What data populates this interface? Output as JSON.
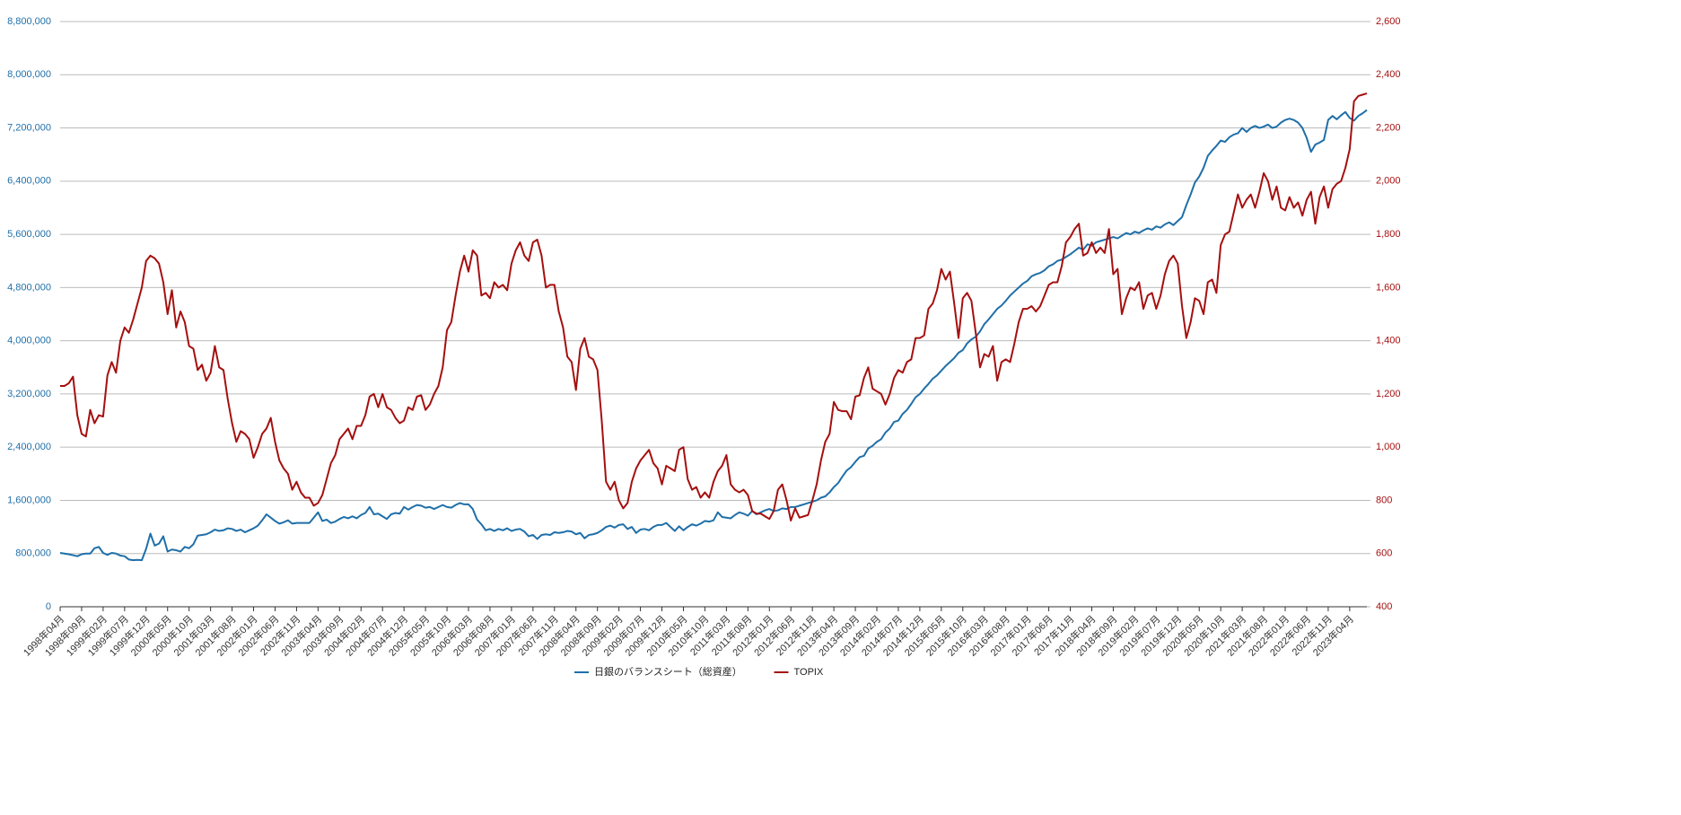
{
  "chart_data": {
    "type": "line",
    "categories": [
      "1998年04月",
      null,
      null,
      null,
      null,
      "1998年09月",
      null,
      null,
      null,
      null,
      "1999年02月",
      null,
      null,
      null,
      null,
      "1999年07月",
      null,
      null,
      null,
      null,
      "1999年12月",
      null,
      null,
      null,
      null,
      "2000年05月",
      null,
      null,
      null,
      null,
      "2000年10月",
      null,
      null,
      null,
      null,
      "2001年03月",
      null,
      null,
      null,
      null,
      "2001年08月",
      null,
      null,
      null,
      null,
      "2002年01月",
      null,
      null,
      null,
      null,
      "2002年06月",
      null,
      null,
      null,
      null,
      "2002年11月",
      null,
      null,
      null,
      null,
      "2003年04月",
      null,
      null,
      null,
      null,
      "2003年09月",
      null,
      null,
      null,
      null,
      "2004年02月",
      null,
      null,
      null,
      null,
      "2004年07月",
      null,
      null,
      null,
      null,
      "2004年12月",
      null,
      null,
      null,
      null,
      "2005年05月",
      null,
      null,
      null,
      null,
      "2005年10月",
      null,
      null,
      null,
      null,
      "2006年03月",
      null,
      null,
      null,
      null,
      "2006年08月",
      null,
      null,
      null,
      null,
      "2007年01月",
      null,
      null,
      null,
      null,
      "2007年06月",
      null,
      null,
      null,
      null,
      "2007年11月",
      null,
      null,
      null,
      null,
      "2008年04月",
      null,
      null,
      null,
      null,
      "2008年09月",
      null,
      null,
      null,
      null,
      "2009年02月",
      null,
      null,
      null,
      null,
      "2009年07月",
      null,
      null,
      null,
      null,
      "2009年12月",
      null,
      null,
      null,
      null,
      "2010年05月",
      null,
      null,
      null,
      null,
      "2010年10月",
      null,
      null,
      null,
      null,
      "2011年03月",
      null,
      null,
      null,
      null,
      "2011年08月",
      null,
      null,
      null,
      null,
      "2012年01月",
      null,
      null,
      null,
      null,
      "2012年06月",
      null,
      null,
      null,
      null,
      "2012年11月",
      null,
      null,
      null,
      null,
      "2013年04月",
      null,
      null,
      null,
      null,
      "2013年09月",
      null,
      null,
      null,
      null,
      "2014年02月",
      null,
      null,
      null,
      null,
      "2014年07月",
      null,
      null,
      null,
      null,
      "2014年12月",
      null,
      null,
      null,
      null,
      "2015年05月",
      null,
      null,
      null,
      null,
      "2015年10月",
      null,
      null,
      null,
      null,
      "2016年03月",
      null,
      null,
      null,
      null,
      "2016年08月",
      null,
      null,
      null,
      null,
      "2017年01月",
      null,
      null,
      null,
      null,
      "2017年06月",
      null,
      null,
      null,
      null,
      "2017年11月",
      null,
      null,
      null,
      null,
      "2018年04月",
      null,
      null,
      null,
      null,
      "2018年09月",
      null,
      null,
      null,
      null,
      "2019年02月",
      null,
      null,
      null,
      null,
      "2019年07月",
      null,
      null,
      null,
      null,
      "2019年12月",
      null,
      null,
      null,
      null,
      "2020年05月",
      null,
      null,
      null,
      null,
      "2020年10月",
      null,
      null,
      null,
      null,
      "2021年03月",
      null,
      null,
      null,
      null,
      "2021年08月",
      null,
      null,
      null,
      null,
      "2022年01月",
      null,
      null,
      null,
      null,
      "2022年06月",
      null,
      null,
      null,
      null,
      "2022年11月",
      null,
      null,
      null,
      null,
      "2023年04月",
      null,
      null,
      null,
      null
    ],
    "series": [
      {
        "name": "日銀のバランスシート（総資産）",
        "color": "#1f6fa8",
        "axis": "y",
        "values": [
          810000,
          800000,
          790000,
          775000,
          760000,
          790000,
          800000,
          800000,
          880000,
          900000,
          810000,
          780000,
          810000,
          800000,
          770000,
          760000,
          710000,
          700000,
          705000,
          700000,
          870000,
          1100000,
          920000,
          950000,
          1060000,
          830000,
          860000,
          850000,
          830000,
          900000,
          880000,
          940000,
          1070000,
          1080000,
          1090000,
          1120000,
          1160000,
          1140000,
          1150000,
          1180000,
          1170000,
          1140000,
          1160000,
          1120000,
          1150000,
          1180000,
          1220000,
          1300000,
          1390000,
          1340000,
          1290000,
          1250000,
          1270000,
          1300000,
          1250000,
          1260000,
          1260000,
          1260000,
          1260000,
          1340000,
          1420000,
          1290000,
          1310000,
          1260000,
          1280000,
          1320000,
          1350000,
          1330000,
          1360000,
          1330000,
          1380000,
          1410000,
          1500000,
          1390000,
          1400000,
          1360000,
          1320000,
          1390000,
          1410000,
          1400000,
          1500000,
          1460000,
          1500000,
          1530000,
          1520000,
          1490000,
          1500000,
          1470000,
          1500000,
          1530000,
          1500000,
          1490000,
          1530000,
          1560000,
          1540000,
          1540000,
          1470000,
          1310000,
          1240000,
          1150000,
          1170000,
          1140000,
          1170000,
          1150000,
          1180000,
          1140000,
          1160000,
          1170000,
          1130000,
          1060000,
          1080000,
          1020000,
          1080000,
          1090000,
          1080000,
          1120000,
          1110000,
          1120000,
          1140000,
          1130000,
          1090000,
          1110000,
          1030000,
          1080000,
          1090000,
          1110000,
          1150000,
          1200000,
          1220000,
          1190000,
          1230000,
          1240000,
          1170000,
          1200000,
          1110000,
          1160000,
          1170000,
          1150000,
          1200000,
          1230000,
          1230000,
          1260000,
          1200000,
          1140000,
          1210000,
          1150000,
          1200000,
          1240000,
          1220000,
          1250000,
          1290000,
          1280000,
          1300000,
          1420000,
          1350000,
          1340000,
          1330000,
          1380000,
          1420000,
          1400000,
          1370000,
          1440000,
          1390000,
          1420000,
          1450000,
          1470000,
          1440000,
          1450000,
          1480000,
          1470000,
          1500000,
          1500000,
          1520000,
          1540000,
          1560000,
          1580000,
          1600000,
          1640000,
          1660000,
          1720000,
          1800000,
          1860000,
          1960000,
          2050000,
          2100000,
          2180000,
          2250000,
          2270000,
          2380000,
          2420000,
          2480000,
          2520000,
          2620000,
          2680000,
          2780000,
          2800000,
          2900000,
          2960000,
          3050000,
          3150000,
          3200000,
          3280000,
          3350000,
          3430000,
          3480000,
          3550000,
          3620000,
          3680000,
          3740000,
          3820000,
          3860000,
          3960000,
          4020000,
          4060000,
          4140000,
          4250000,
          4320000,
          4400000,
          4480000,
          4530000,
          4600000,
          4680000,
          4740000,
          4800000,
          4860000,
          4900000,
          4970000,
          5000000,
          5020000,
          5060000,
          5120000,
          5150000,
          5200000,
          5220000,
          5260000,
          5300000,
          5350000,
          5400000,
          5370000,
          5450000,
          5430000,
          5480000,
          5500000,
          5520000,
          5540000,
          5560000,
          5540000,
          5580000,
          5620000,
          5600000,
          5640000,
          5620000,
          5660000,
          5690000,
          5670000,
          5720000,
          5700000,
          5750000,
          5780000,
          5740000,
          5800000,
          5860000,
          6040000,
          6200000,
          6380000,
          6470000,
          6600000,
          6780000,
          6860000,
          6930000,
          7010000,
          6990000,
          7060000,
          7100000,
          7120000,
          7200000,
          7140000,
          7200000,
          7230000,
          7200000,
          7220000,
          7250000,
          7200000,
          7220000,
          7280000,
          7320000,
          7340000,
          7320000,
          7280000,
          7200000,
          7050000,
          6840000,
          6950000,
          6980000,
          7020000,
          7320000,
          7380000,
          7330000,
          7390000,
          7440000,
          7350000,
          7310000,
          7380000,
          7420000,
          7470000
        ]
      },
      {
        "name": "TOPIX",
        "color": "#a50f0f",
        "axis": "y2",
        "values": [
          1230,
          1230,
          1240,
          1265,
          1120,
          1050,
          1040,
          1140,
          1090,
          1120,
          1115,
          1270,
          1320,
          1280,
          1400,
          1450,
          1430,
          1480,
          1540,
          1600,
          1700,
          1720,
          1710,
          1690,
          1620,
          1500,
          1590,
          1450,
          1510,
          1470,
          1380,
          1370,
          1290,
          1310,
          1250,
          1280,
          1380,
          1300,
          1290,
          1180,
          1090,
          1020,
          1060,
          1050,
          1030,
          960,
          1000,
          1050,
          1070,
          1110,
          1020,
          950,
          920,
          900,
          840,
          870,
          830,
          810,
          810,
          780,
          790,
          820,
          880,
          940,
          970,
          1030,
          1050,
          1070,
          1030,
          1080,
          1080,
          1120,
          1190,
          1200,
          1150,
          1200,
          1150,
          1140,
          1110,
          1090,
          1100,
          1150,
          1140,
          1190,
          1195,
          1140,
          1160,
          1200,
          1230,
          1300,
          1440,
          1470,
          1570,
          1660,
          1720,
          1660,
          1740,
          1720,
          1570,
          1580,
          1560,
          1620,
          1600,
          1610,
          1590,
          1690,
          1740,
          1770,
          1720,
          1700,
          1770,
          1780,
          1720,
          1600,
          1610,
          1610,
          1510,
          1450,
          1340,
          1320,
          1215,
          1370,
          1410,
          1340,
          1330,
          1290,
          1100,
          870,
          840,
          870,
          800,
          770,
          790,
          870,
          920,
          950,
          970,
          990,
          940,
          920,
          860,
          930,
          920,
          910,
          990,
          1000,
          880,
          840,
          850,
          810,
          830,
          810,
          870,
          910,
          930,
          970,
          860,
          840,
          830,
          840,
          820,
          760,
          750,
          750,
          740,
          730,
          760,
          840,
          860,
          800,
          724,
          770,
          735,
          740,
          745,
          800,
          860,
          950,
          1020,
          1050,
          1170,
          1140,
          1135,
          1135,
          1105,
          1190,
          1195,
          1260,
          1300,
          1220,
          1210,
          1200,
          1160,
          1200,
          1260,
          1290,
          1280,
          1320,
          1330,
          1410,
          1410,
          1420,
          1520,
          1540,
          1590,
          1670,
          1630,
          1660,
          1540,
          1410,
          1560,
          1580,
          1550,
          1430,
          1300,
          1350,
          1340,
          1380,
          1250,
          1320,
          1330,
          1320,
          1390,
          1470,
          1520,
          1520,
          1530,
          1510,
          1530,
          1570,
          1610,
          1620,
          1620,
          1680,
          1770,
          1790,
          1820,
          1840,
          1720,
          1730,
          1770,
          1730,
          1750,
          1730,
          1820,
          1650,
          1670,
          1500,
          1560,
          1600,
          1590,
          1620,
          1520,
          1570,
          1580,
          1520,
          1570,
          1650,
          1700,
          1720,
          1690,
          1530,
          1410,
          1470,
          1560,
          1550,
          1500,
          1620,
          1630,
          1580,
          1760,
          1800,
          1810,
          1880,
          1950,
          1900,
          1930,
          1950,
          1900,
          1960,
          2030,
          2000,
          1930,
          1980,
          1900,
          1890,
          1940,
          1900,
          1920,
          1870,
          1930,
          1960,
          1840,
          1940,
          1980,
          1900,
          1970,
          1990,
          2000,
          2050,
          2120,
          2300,
          2320,
          2325,
          2330
        ]
      }
    ],
    "ylim": [
      0,
      8800000
    ],
    "yticks": [
      0,
      {
        "value": 800000,
        "label": "800,000"
      },
      {
        "value": 1600000,
        "label": "1,600,000"
      },
      {
        "value": 2400000,
        "label": "2,400,000"
      },
      {
        "value": 3200000,
        "label": "3,200,000"
      },
      {
        "value": 4000000,
        "label": "4,000,000"
      },
      {
        "value": 4800000,
        "label": "4,800,000"
      },
      {
        "value": 5600000,
        "label": "5,600,000"
      },
      {
        "value": 6400000,
        "label": "6,400,000"
      },
      {
        "value": 7200000,
        "label": "7,200,000"
      },
      {
        "value": 8000000,
        "label": "8,000,000"
      },
      {
        "value": 8800000,
        "label": "8,800,000"
      }
    ],
    "y2lim": [
      400,
      2600
    ],
    "y2ticks": [
      400,
      600,
      800,
      {
        "value": 1000,
        "label": "1,000"
      },
      {
        "value": 1200,
        "label": "1,200"
      },
      {
        "value": 1400,
        "label": "1,400"
      },
      {
        "value": 1600,
        "label": "1,600"
      },
      {
        "value": 1800,
        "label": "1,800"
      },
      {
        "value": 2000,
        "label": "2,000"
      },
      {
        "value": 2200,
        "label": "2,200"
      },
      {
        "value": 2400,
        "label": "2,400"
      },
      {
        "value": 2600,
        "label": "2,600"
      }
    ],
    "grid": true,
    "legend": "bottom"
  }
}
